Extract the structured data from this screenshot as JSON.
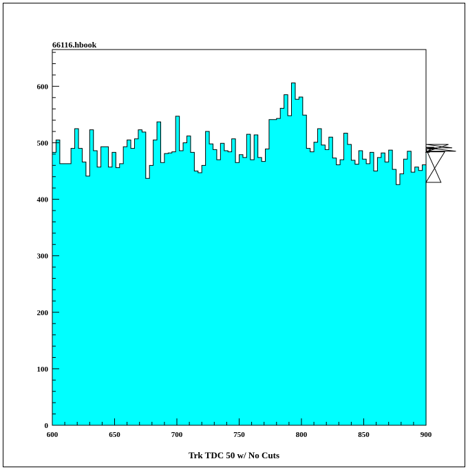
{
  "chart_data": {
    "type": "bar",
    "title": "66116.hbook",
    "xlabel": "Trk TDC 50 w/ No Cuts",
    "ylabel": "",
    "xlim": [
      600,
      900
    ],
    "ylim": [
      0,
      665
    ],
    "bin_width": 3,
    "x_ticks": [
      600,
      650,
      700,
      750,
      800,
      850,
      900
    ],
    "y_ticks": [
      0,
      100,
      200,
      300,
      400,
      500,
      600
    ],
    "fill_color": "#00ffff",
    "line_color": "#000000",
    "grid": false,
    "values": [
      483,
      505,
      463,
      463,
      463,
      490,
      525,
      490,
      466,
      441,
      523,
      486,
      457,
      493,
      493,
      457,
      483,
      456,
      463,
      493,
      505,
      490,
      507,
      523,
      519,
      437,
      460,
      505,
      537,
      465,
      481,
      482,
      484,
      547,
      486,
      500,
      512,
      483,
      450,
      447,
      460,
      520,
      498,
      488,
      470,
      499,
      486,
      484,
      507,
      465,
      479,
      474,
      515,
      470,
      514,
      474,
      467,
      489,
      541,
      541,
      543,
      561,
      585,
      548,
      606,
      577,
      581,
      549,
      490,
      484,
      501,
      525,
      496,
      488,
      510,
      473,
      461,
      470,
      517,
      497,
      469,
      462,
      486,
      471,
      463,
      483,
      450,
      474,
      482,
      466,
      487,
      453,
      426,
      445,
      471,
      485,
      448,
      457,
      451,
      461,
      483,
      483,
      492,
      489,
      430,
      484,
      497,
      491,
      485
    ]
  }
}
